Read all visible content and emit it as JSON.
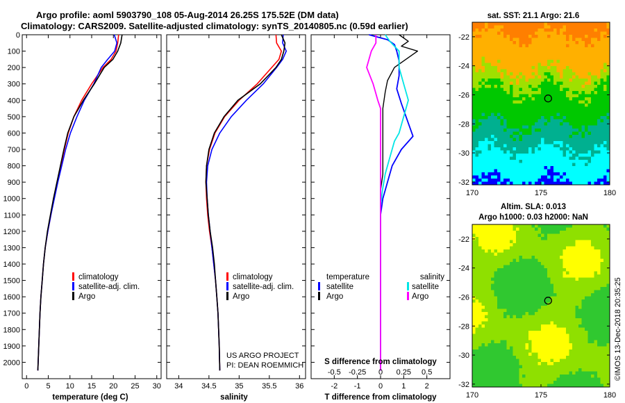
{
  "title_line1": "Argo profile: aoml 5903790_108 05-Aug-2014 26.25S 175.52E (DM data)",
  "title_line2": "Climatology: CARS2009. Satellite-adjusted climatology: synTS_20140805.nc (0.59d earlier)",
  "colors": {
    "climatology": "#ff0000",
    "satellite": "#0000ff",
    "argo": "#000000",
    "sat_salinity": "#00e5e5",
    "argo_salinity": "#ff00ff"
  },
  "depth_ticks": [
    "0",
    "100",
    "200",
    "300",
    "400",
    "500",
    "600",
    "700",
    "800",
    "900",
    "1000",
    "1100",
    "1200",
    "1300",
    "1400",
    "1500",
    "1600",
    "1700",
    "1800",
    "1900",
    "2000"
  ],
  "legend": {
    "climatology": "climatology",
    "satellite": "satellite-adj. clim.",
    "argo": "Argo"
  },
  "credit": {
    "line1": "US ARGO PROJECT",
    "line2": "PI: DEAN ROEMMICH"
  },
  "diff_legend": {
    "temperature": "temperature",
    "salinity": "salinity",
    "satellite": "satellite",
    "argo": "Argo"
  },
  "sst_title": "sat. SST: 21.1 Argo: 21.6",
  "sla_title1": "Altim. SLA: 0.013",
  "sla_title2": "Argo h1000: 0.03 h2000: NaN",
  "side_label": "©IMOS 13-Dec-2018 20:35:25",
  "map_colors": {
    "sst": [
      "#ff7f00",
      "#ffb000",
      "#9fe000",
      "#00c800",
      "#00b090",
      "#00ffff",
      "#0000ff"
    ],
    "sla": [
      "#30c830",
      "#8fe000",
      "#ffff00"
    ]
  },
  "chart_data": [
    {
      "type": "line",
      "xlabel": "temperature (deg C)",
      "xlim": [
        -1,
        31
      ],
      "xticks": [
        "0",
        "5",
        "10",
        "15",
        "20",
        "25",
        "30"
      ],
      "ylim": [
        2100,
        0
      ],
      "series": [
        {
          "name": "climatology",
          "x": [
            21.2,
            21.0,
            20.6,
            19.5,
            17.6,
            15.0,
            12.7,
            10.9,
            9.6,
            8.7,
            7.9,
            7.1,
            6.3,
            5.6,
            4.9,
            4.3,
            3.9,
            3.6,
            3.3,
            3.1,
            2.8,
            2.6
          ],
          "y": [
            0,
            50,
            100,
            150,
            200,
            300,
            400,
            500,
            600,
            700,
            800,
            900,
            1000,
            1100,
            1200,
            1300,
            1400,
            1500,
            1600,
            1700,
            1900,
            2050
          ]
        },
        {
          "name": "satellite-adj. clim.",
          "x": [
            20.2,
            20.8,
            20.3,
            18.7,
            17.2,
            15.5,
            13.3,
            11.6,
            10.1,
            9.0,
            8.1,
            7.2,
            6.4,
            5.6,
            4.9,
            4.3,
            3.9,
            3.6,
            3.3,
            3.1,
            2.8,
            2.6
          ],
          "y": [
            0,
            50,
            100,
            150,
            200,
            300,
            400,
            500,
            600,
            700,
            800,
            900,
            1000,
            1100,
            1200,
            1300,
            1400,
            1500,
            1600,
            1700,
            1900,
            2050
          ]
        },
        {
          "name": "Argo",
          "x": [
            22.0,
            21.7,
            21.0,
            19.9,
            17.9,
            15.6,
            13.1,
            10.9,
            9.5,
            8.6,
            7.8,
            7.0,
            6.2,
            5.5,
            4.8,
            4.3,
            3.9,
            3.6,
            3.3,
            3.1,
            2.8,
            2.6
          ],
          "y": [
            0,
            50,
            100,
            150,
            200,
            300,
            400,
            500,
            600,
            700,
            800,
            900,
            1000,
            1100,
            1200,
            1300,
            1400,
            1500,
            1600,
            1700,
            1900,
            2050
          ]
        }
      ]
    },
    {
      "type": "line",
      "xlabel": "salinity",
      "xlim": [
        33.8,
        36.1
      ],
      "xticks": [
        "34",
        "34.5",
        "35",
        "35.5",
        "36"
      ],
      "ylim": [
        2100,
        0
      ],
      "series": [
        {
          "name": "climatology",
          "x": [
            35.61,
            35.62,
            35.7,
            35.66,
            35.54,
            35.3,
            35.0,
            34.76,
            34.6,
            34.51,
            34.46,
            34.45,
            34.46,
            34.48,
            34.51,
            34.55,
            34.58,
            34.61,
            34.63,
            34.65,
            34.67,
            34.68
          ],
          "y": [
            0,
            50,
            100,
            150,
            200,
            300,
            400,
            500,
            600,
            700,
            800,
            900,
            1000,
            1100,
            1200,
            1300,
            1400,
            1500,
            1600,
            1700,
            1900,
            2050
          ]
        },
        {
          "name": "satellite-adj. clim.",
          "x": [
            35.73,
            35.72,
            35.78,
            35.72,
            35.62,
            35.4,
            35.12,
            34.87,
            34.68,
            34.55,
            34.48,
            34.46,
            34.47,
            34.49,
            34.52,
            34.55,
            34.58,
            34.61,
            34.63,
            34.65,
            34.67,
            34.68
          ],
          "y": [
            0,
            50,
            100,
            150,
            200,
            300,
            400,
            500,
            600,
            700,
            800,
            900,
            1000,
            1100,
            1200,
            1300,
            1400,
            1500,
            1600,
            1700,
            1900,
            2050
          ]
        },
        {
          "name": "Argo",
          "x": [
            35.7,
            35.76,
            35.74,
            35.7,
            35.61,
            35.35,
            34.98,
            34.75,
            34.59,
            34.5,
            34.46,
            34.45,
            34.47,
            34.49,
            34.52,
            34.56,
            34.59,
            34.61,
            34.63,
            34.65,
            34.67,
            34.68
          ],
          "y": [
            0,
            50,
            100,
            150,
            200,
            300,
            400,
            500,
            600,
            700,
            800,
            900,
            1000,
            1100,
            1200,
            1300,
            1400,
            1500,
            1600,
            1700,
            1900,
            2050
          ]
        }
      ]
    },
    {
      "type": "line",
      "xlabel": "T difference from climatology",
      "xlim": [
        -3,
        3
      ],
      "xticks": [
        "-2",
        "-1",
        "0",
        "1",
        "2"
      ],
      "secondary_label": "S difference from climatology",
      "secondary_ticks": [
        "-0.5",
        "-0.25",
        "0",
        "0.25",
        "0.5"
      ],
      "secondary_xlim": [
        -0.75,
        0.75
      ],
      "ylim": [
        2100,
        0
      ],
      "series": [
        {
          "name": "temperature satellite",
          "axis": "T",
          "x": [
            -0.5,
            0.3,
            0.6,
            0.7,
            0.8,
            0.8,
            0.7,
            0.9,
            1.2,
            1.4,
            0.9,
            0.5,
            0.3,
            0.1,
            0.0,
            0.0,
            0.0,
            0.0,
            0.0,
            0.0
          ],
          "y": [
            0,
            30,
            60,
            100,
            160,
            250,
            330,
            420,
            540,
            620,
            700,
            800,
            900,
            1000,
            1100,
            1300,
            1500,
            1700,
            1900,
            2050
          ]
        },
        {
          "name": "temperature Argo",
          "axis": "T",
          "x": [
            0.8,
            1.2,
            0.9,
            1.6,
            0.6,
            0.3,
            0.2,
            0.1,
            0.1,
            0.1,
            0.1,
            0.1,
            0.0,
            0.0,
            0.0,
            0.0,
            0.0,
            0.0,
            0.0
          ],
          "y": [
            0,
            40,
            70,
            100,
            200,
            280,
            350,
            450,
            550,
            650,
            750,
            850,
            950,
            1050,
            1200,
            1400,
            1600,
            1800,
            2050
          ]
        },
        {
          "name": "salinity satellite",
          "axis": "S",
          "x": [
            0.05,
            0.1,
            0.2,
            0.2,
            0.25,
            0.3,
            0.25,
            0.2,
            0.15,
            0.1,
            0.05,
            0.02,
            0.0,
            0.0,
            0.0,
            0.0,
            0.0,
            0.0
          ],
          "y": [
            0,
            40,
            100,
            200,
            300,
            400,
            500,
            600,
            650,
            750,
            850,
            950,
            1050,
            1200,
            1400,
            1600,
            1800,
            2050
          ]
        },
        {
          "name": "salinity Argo",
          "axis": "S",
          "x": [
            -0.05,
            -0.05,
            -0.1,
            -0.15,
            -0.08,
            -0.03,
            0.0,
            0.0,
            0.0,
            0.0,
            0.0,
            0.0
          ],
          "y": [
            0,
            50,
            100,
            200,
            300,
            400,
            450,
            500,
            700,
            1000,
            1500,
            2050
          ]
        }
      ]
    },
    {
      "type": "heatmap",
      "title": "sat. SST: 21.1 Argo: 21.6",
      "xlim": [
        170,
        180
      ],
      "ylim": [
        -32.2,
        -21.0
      ],
      "xticks": [
        "170",
        "175",
        "180"
      ],
      "yticks": [
        "-22",
        "-24",
        "-26",
        "-28",
        "-30",
        "-32"
      ],
      "marker": {
        "lon": 175.52,
        "lat": -26.25
      }
    },
    {
      "type": "heatmap",
      "title": "Altim. SLA: 0.013",
      "subtitle": "Argo h1000: 0.03 h2000: NaN",
      "xlim": [
        170,
        180
      ],
      "ylim": [
        -32.2,
        -21.0
      ],
      "xticks": [
        "170",
        "175",
        "180"
      ],
      "yticks": [
        "-22",
        "-24",
        "-26",
        "-28",
        "-30",
        "-32"
      ],
      "marker": {
        "lon": 175.52,
        "lat": -26.25
      }
    }
  ]
}
